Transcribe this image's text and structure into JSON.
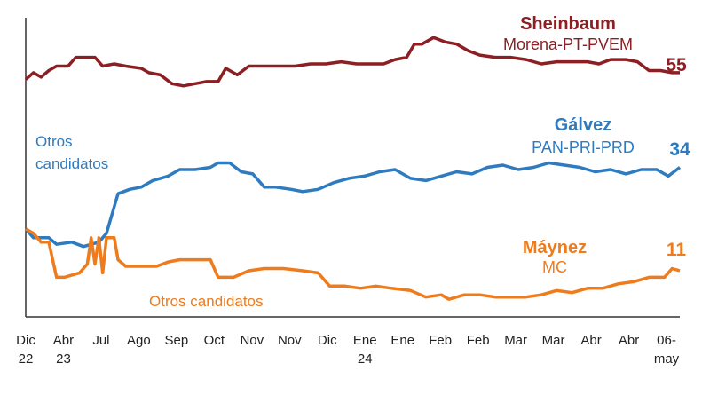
{
  "chart_data": {
    "type": "line",
    "title": "",
    "xlabel": "",
    "ylabel": "",
    "ylim": [
      0,
      68
    ],
    "grid": false,
    "x_ticks": [
      {
        "top": "Dic",
        "bottom": "22"
      },
      {
        "top": "Abr",
        "bottom": "23"
      },
      {
        "top": "Jul",
        "bottom": ""
      },
      {
        "top": "Ago",
        "bottom": ""
      },
      {
        "top": "Sep",
        "bottom": ""
      },
      {
        "top": "Oct",
        "bottom": ""
      },
      {
        "top": "Nov",
        "bottom": ""
      },
      {
        "top": "Nov",
        "bottom": ""
      },
      {
        "top": "Dic",
        "bottom": ""
      },
      {
        "top": "Ene",
        "bottom": "24"
      },
      {
        "top": "Ene",
        "bottom": ""
      },
      {
        "top": "Feb",
        "bottom": ""
      },
      {
        "top": "Feb",
        "bottom": ""
      },
      {
        "top": "Mar",
        "bottom": ""
      },
      {
        "top": "Mar",
        "bottom": ""
      },
      {
        "top": "Abr",
        "bottom": ""
      },
      {
        "top": "Abr",
        "bottom": ""
      },
      {
        "top": "06-",
        "bottom": "may"
      }
    ],
    "x_max": 17,
    "series": [
      {
        "name": "Sheinbaum",
        "party": "Morena-PT-PVEM",
        "color": "#8b1f24",
        "end_label": "55",
        "points": [
          [
            0,
            54
          ],
          [
            0.2,
            55.5
          ],
          [
            0.4,
            54.5
          ],
          [
            0.6,
            56
          ],
          [
            0.8,
            57
          ],
          [
            1.1,
            57
          ],
          [
            1.3,
            59
          ],
          [
            1.6,
            59
          ],
          [
            1.8,
            59
          ],
          [
            2.0,
            57
          ],
          [
            2.3,
            57.5
          ],
          [
            2.6,
            57
          ],
          [
            3.0,
            56.5
          ],
          [
            3.2,
            55.5
          ],
          [
            3.5,
            55
          ],
          [
            3.8,
            53
          ],
          [
            4.1,
            52.5
          ],
          [
            4.4,
            53
          ],
          [
            4.7,
            53.5
          ],
          [
            5.0,
            53.5
          ],
          [
            5.2,
            56.5
          ],
          [
            5.5,
            55
          ],
          [
            5.8,
            57
          ],
          [
            6.2,
            57
          ],
          [
            6.6,
            57
          ],
          [
            7.0,
            57
          ],
          [
            7.4,
            57.5
          ],
          [
            7.8,
            57.5
          ],
          [
            8.2,
            58
          ],
          [
            8.6,
            57.5
          ],
          [
            9.0,
            57.5
          ],
          [
            9.3,
            57.5
          ],
          [
            9.6,
            58.5
          ],
          [
            9.9,
            59
          ],
          [
            10.1,
            62
          ],
          [
            10.3,
            62
          ],
          [
            10.6,
            63.5
          ],
          [
            10.9,
            62.5
          ],
          [
            11.2,
            62
          ],
          [
            11.5,
            60.5
          ],
          [
            11.8,
            59.5
          ],
          [
            12.2,
            59
          ],
          [
            12.6,
            59
          ],
          [
            13.0,
            58.5
          ],
          [
            13.4,
            57.5
          ],
          [
            13.8,
            58
          ],
          [
            14.2,
            58
          ],
          [
            14.6,
            58
          ],
          [
            14.9,
            57.5
          ],
          [
            15.2,
            58.5
          ],
          [
            15.6,
            58.5
          ],
          [
            15.9,
            58
          ],
          [
            16.2,
            56
          ],
          [
            16.5,
            56
          ],
          [
            16.8,
            55.5
          ],
          [
            17.0,
            55.5
          ]
        ]
      },
      {
        "name": "Gálvez",
        "party": "PAN-PRI-PRD",
        "color": "#2e7bc0",
        "end_label": "34",
        "points": [
          [
            0,
            20
          ],
          [
            0.2,
            18
          ],
          [
            0.4,
            18
          ],
          [
            0.6,
            18
          ],
          [
            0.8,
            16.5
          ],
          [
            1.2,
            17
          ],
          [
            1.5,
            16
          ],
          [
            1.9,
            17
          ],
          [
            2.1,
            19
          ],
          [
            2.4,
            28
          ],
          [
            2.7,
            29
          ],
          [
            3.0,
            29.5
          ],
          [
            3.3,
            31
          ],
          [
            3.7,
            32
          ],
          [
            4.0,
            33.5
          ],
          [
            4.4,
            33.5
          ],
          [
            4.8,
            34
          ],
          [
            5.0,
            35
          ],
          [
            5.3,
            35
          ],
          [
            5.6,
            33
          ],
          [
            5.9,
            32.5
          ],
          [
            6.2,
            29.5
          ],
          [
            6.5,
            29.5
          ],
          [
            6.9,
            29
          ],
          [
            7.2,
            28.5
          ],
          [
            7.6,
            29
          ],
          [
            8.0,
            30.5
          ],
          [
            8.4,
            31.5
          ],
          [
            8.8,
            32
          ],
          [
            9.2,
            33
          ],
          [
            9.6,
            33.5
          ],
          [
            10.0,
            31.5
          ],
          [
            10.4,
            31
          ],
          [
            10.8,
            32
          ],
          [
            11.2,
            33
          ],
          [
            11.6,
            32.5
          ],
          [
            12.0,
            34
          ],
          [
            12.4,
            34.5
          ],
          [
            12.8,
            33.5
          ],
          [
            13.2,
            34
          ],
          [
            13.6,
            35
          ],
          [
            14.0,
            34.5
          ],
          [
            14.4,
            34
          ],
          [
            14.8,
            33
          ],
          [
            15.2,
            33.5
          ],
          [
            15.6,
            32.5
          ],
          [
            16.0,
            33.5
          ],
          [
            16.4,
            33.5
          ],
          [
            16.7,
            32
          ],
          [
            17.0,
            34
          ]
        ]
      },
      {
        "name": "Máynez",
        "party": "MC",
        "color": "#ee7b1c",
        "end_label": "11",
        "points": [
          [
            0,
            20
          ],
          [
            0.2,
            19
          ],
          [
            0.4,
            17
          ],
          [
            0.6,
            17
          ],
          [
            0.8,
            9
          ],
          [
            1.0,
            9
          ],
          [
            1.2,
            9.5
          ],
          [
            1.4,
            10
          ],
          [
            1.6,
            12
          ],
          [
            1.7,
            18
          ],
          [
            1.8,
            12
          ],
          [
            1.9,
            18
          ],
          [
            2.0,
            10
          ],
          [
            2.1,
            18
          ],
          [
            2.3,
            18
          ],
          [
            2.4,
            13
          ],
          [
            2.6,
            11.5
          ],
          [
            3.0,
            11.5
          ],
          [
            3.4,
            11.5
          ],
          [
            3.7,
            12.5
          ],
          [
            4.0,
            13
          ],
          [
            4.5,
            13
          ],
          [
            4.8,
            13
          ],
          [
            5.0,
            9
          ],
          [
            5.4,
            9
          ],
          [
            5.8,
            10.5
          ],
          [
            6.2,
            11
          ],
          [
            6.7,
            11
          ],
          [
            7.2,
            10.5
          ],
          [
            7.6,
            10
          ],
          [
            7.9,
            7
          ],
          [
            8.3,
            7
          ],
          [
            8.7,
            6.5
          ],
          [
            9.1,
            7
          ],
          [
            9.5,
            6.5
          ],
          [
            10.0,
            6
          ],
          [
            10.4,
            4.5
          ],
          [
            10.8,
            5
          ],
          [
            11.0,
            4
          ],
          [
            11.4,
            5
          ],
          [
            11.8,
            5
          ],
          [
            12.2,
            4.5
          ],
          [
            12.6,
            4.5
          ],
          [
            13.0,
            4.5
          ],
          [
            13.4,
            5
          ],
          [
            13.8,
            6
          ],
          [
            14.2,
            5.5
          ],
          [
            14.6,
            6.5
          ],
          [
            15.0,
            6.5
          ],
          [
            15.4,
            7.5
          ],
          [
            15.8,
            8
          ],
          [
            16.2,
            9
          ],
          [
            16.6,
            9
          ],
          [
            16.8,
            11
          ],
          [
            17.0,
            10.5
          ]
        ]
      }
    ],
    "annotations": [
      {
        "text": "Otros candidatos",
        "color": "#2e7bc0"
      },
      {
        "text": "Otros candidatos",
        "color": "#ee7b1c"
      }
    ]
  }
}
